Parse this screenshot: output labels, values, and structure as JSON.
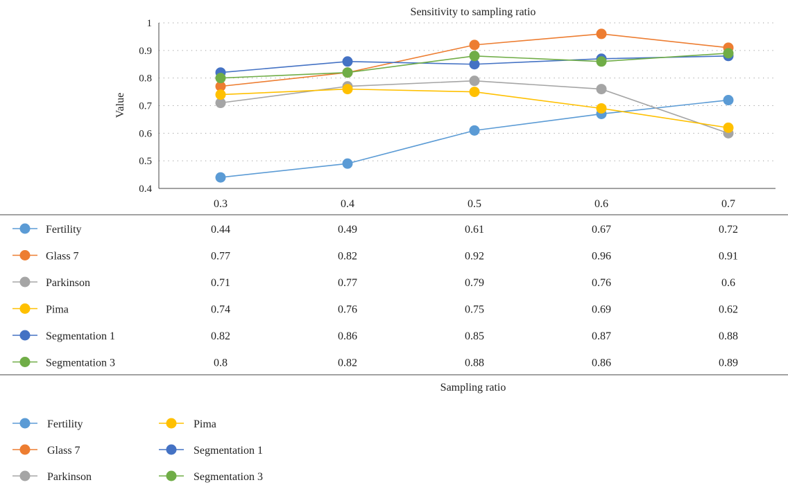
{
  "chart_data": {
    "type": "line",
    "title": "Sensitivity to sampling ratio",
    "xlabel": "Sampling ratio",
    "ylabel": "Value",
    "categories": [
      "0.3",
      "0.4",
      "0.5",
      "0.6",
      "0.7"
    ],
    "x": [
      0.3,
      0.4,
      0.5,
      0.6,
      0.7
    ],
    "ylim": [
      0.4,
      1
    ],
    "yticks": [
      0.4,
      0.5,
      0.6,
      0.7,
      0.8,
      0.9,
      1
    ],
    "ytick_labels": [
      "0.4",
      "0.5",
      "0.6",
      "0.7",
      "0.8",
      "0.9",
      "1"
    ],
    "grid": "horizontal-dotted",
    "legend_position": "bottom-left",
    "data_table": true,
    "series": [
      {
        "name": "Fertility",
        "color": "#5b9bd5",
        "values": [
          0.44,
          0.49,
          0.61,
          0.67,
          0.72
        ],
        "labels": [
          "0.44",
          "0.49",
          "0.61",
          "0.67",
          "0.72"
        ]
      },
      {
        "name": "Glass 7",
        "color": "#ed7d31",
        "values": [
          0.77,
          0.82,
          0.92,
          0.96,
          0.91
        ],
        "labels": [
          "0.77",
          "0.82",
          "0.92",
          "0.96",
          "0.91"
        ]
      },
      {
        "name": "Parkinson",
        "color": "#a5a5a5",
        "values": [
          0.71,
          0.77,
          0.79,
          0.76,
          0.6
        ],
        "labels": [
          "0.71",
          "0.77",
          "0.79",
          "0.76",
          "0.6"
        ]
      },
      {
        "name": "Pima",
        "color": "#ffc000",
        "values": [
          0.74,
          0.76,
          0.75,
          0.69,
          0.62
        ],
        "labels": [
          "0.74",
          "0.76",
          "0.75",
          "0.69",
          "0.62"
        ]
      },
      {
        "name": "Segmentation 1",
        "color": "#4472c4",
        "values": [
          0.82,
          0.86,
          0.85,
          0.87,
          0.88
        ],
        "labels": [
          "0.82",
          "0.86",
          "0.85",
          "0.87",
          "0.88"
        ]
      },
      {
        "name": "Segmentation 3",
        "color": "#70ad47",
        "values": [
          0.8,
          0.82,
          0.88,
          0.86,
          0.89
        ],
        "labels": [
          "0.8",
          "0.82",
          "0.88",
          "0.86",
          "0.89"
        ]
      }
    ],
    "legend_columns": [
      [
        "Fertility",
        "Glass 7",
        "Parkinson"
      ],
      [
        "Pima",
        "Segmentation 1",
        "Segmentation 3"
      ]
    ]
  }
}
